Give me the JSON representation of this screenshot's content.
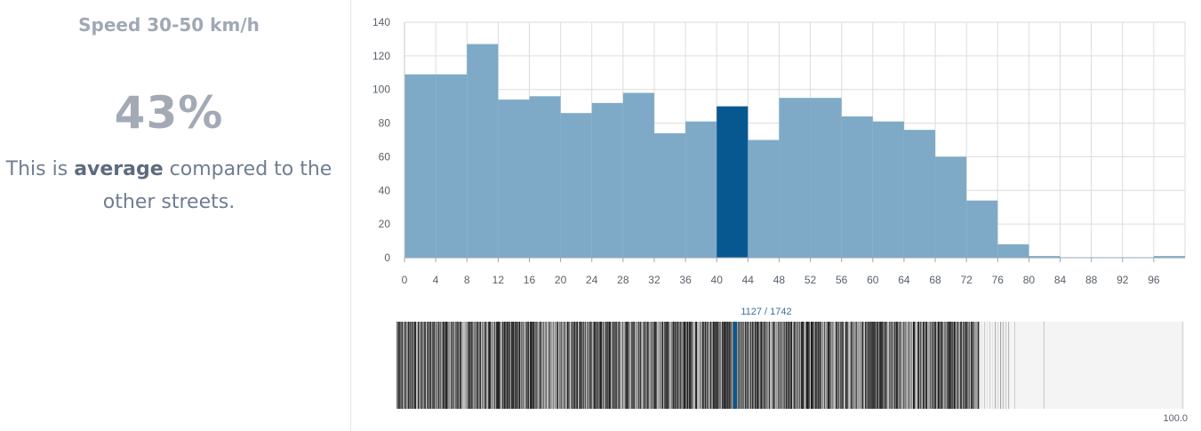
{
  "panel": {
    "title": "Speed 30-50 km/h",
    "percent": "43%",
    "sentence_pre": "This is ",
    "sentence_bold": "average",
    "sentence_post": " compared to the other streets."
  },
  "colors": {
    "bar": "#7eaac7",
    "highlight": "#075891",
    "grid": "#dcdcdc",
    "axis_text": "#59606b"
  },
  "chart_data": [
    {
      "type": "bar",
      "title": "",
      "xlabel": "",
      "ylabel": "",
      "bin_width": 4,
      "x_ticks": [
        0,
        4,
        8,
        12,
        16,
        20,
        24,
        28,
        32,
        36,
        40,
        44,
        48,
        52,
        56,
        60,
        64,
        68,
        72,
        76,
        80,
        84,
        88,
        92,
        96
      ],
      "y_ticks": [
        0,
        20,
        40,
        60,
        80,
        100,
        120,
        140
      ],
      "xlim": [
        0,
        100
      ],
      "ylim": [
        0,
        140
      ],
      "grid": true,
      "bin_starts": [
        0,
        4,
        8,
        12,
        16,
        20,
        24,
        28,
        32,
        36,
        40,
        44,
        48,
        52,
        56,
        60,
        64,
        68,
        72,
        76,
        80,
        84,
        88,
        92,
        96
      ],
      "values": [
        109,
        109,
        127,
        94,
        96,
        86,
        92,
        98,
        74,
        81,
        90,
        70,
        95,
        95,
        84,
        81,
        76,
        60,
        34,
        8,
        1,
        0,
        0,
        0,
        1
      ],
      "highlight_bin_start": 40
    },
    {
      "type": "scatter",
      "title": "",
      "marker_label": "1127 / 1742",
      "max_label": "100.0",
      "xlim": [
        0,
        100
      ],
      "highlight_x": 43
    }
  ]
}
